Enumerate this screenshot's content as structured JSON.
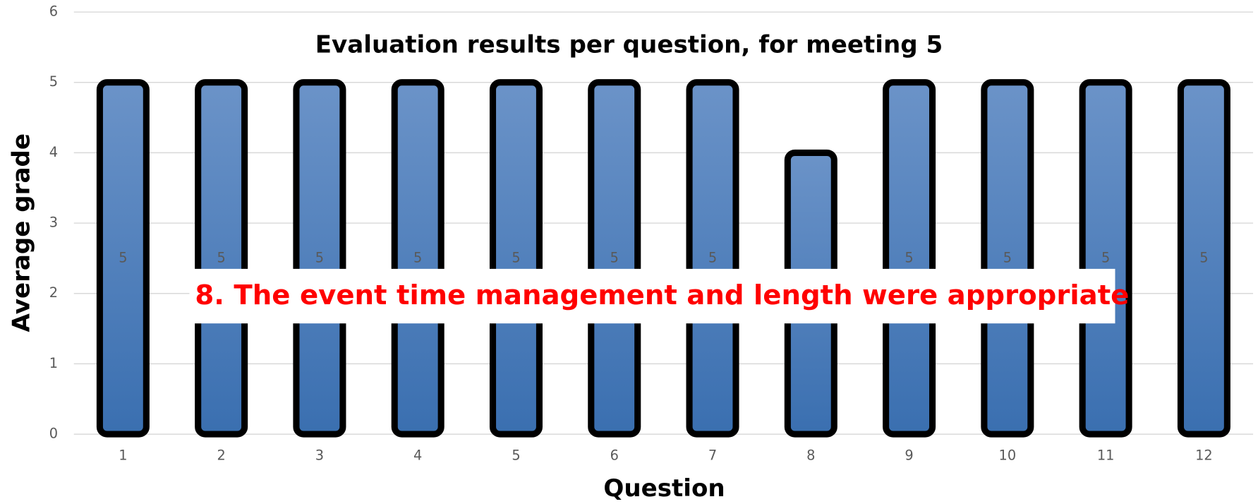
{
  "chart_data": {
    "type": "bar",
    "title": "Evaluation results per question, for meeting 5",
    "x_label": "Question",
    "y_label": "Average grade",
    "annotation": "8. The event time management and length were appropriate",
    "categories": [
      "1",
      "2",
      "3",
      "4",
      "5",
      "6",
      "7",
      "8",
      "9",
      "10",
      "11",
      "12"
    ],
    "values": [
      5,
      5,
      5,
      5,
      5,
      5,
      5,
      4,
      5,
      5,
      5,
      5
    ],
    "color": "#4a7ebb",
    "ylim": [
      0,
      6
    ],
    "yticks": [
      0,
      1,
      2,
      3,
      4,
      5,
      6
    ],
    "grid": true
  }
}
